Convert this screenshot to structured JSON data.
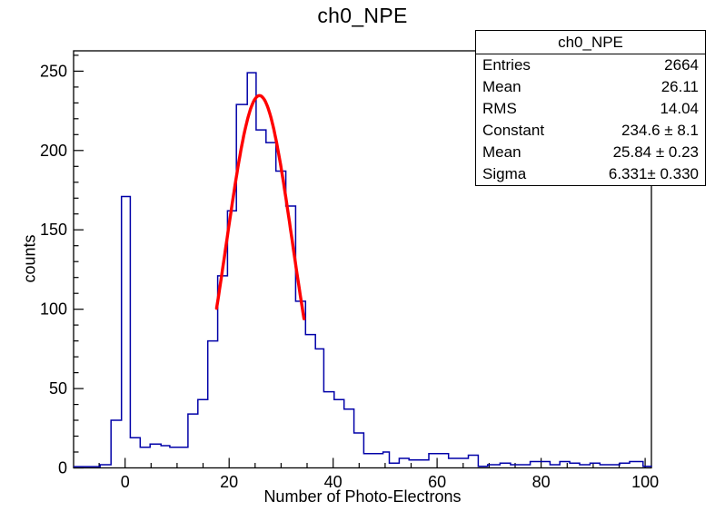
{
  "chart_data": {
    "type": "histogram",
    "title": "ch0_NPE",
    "xlabel": "Number of Photo-Electrons",
    "ylabel": "counts",
    "xlim": [
      -9.9,
      101.2
    ],
    "ylim": [
      0,
      262.8
    ],
    "xticks": [
      0,
      20,
      40,
      60,
      80,
      100
    ],
    "yticks": [
      0,
      50,
      100,
      150,
      200,
      250
    ],
    "x_minor_step": 5,
    "y_minor_step": 10,
    "grid": false,
    "hist_color": "#0000a8",
    "fit_color": "#ff0000",
    "bins_note": "each entry is [bin_left_edge_x, count]; steps continue to next edge; histogram ends at x_end",
    "bins": [
      [
        -4.8,
        2
      ],
      [
        -2.7,
        30
      ],
      [
        -0.7,
        171
      ],
      [
        1.0,
        19
      ],
      [
        2.9,
        13
      ],
      [
        4.8,
        15
      ],
      [
        6.9,
        14
      ],
      [
        8.6,
        13
      ],
      [
        10.4,
        13
      ],
      [
        12.1,
        34
      ],
      [
        14.0,
        43
      ],
      [
        15.9,
        80
      ],
      [
        17.8,
        121
      ],
      [
        19.7,
        162
      ],
      [
        21.4,
        229
      ],
      [
        23.5,
        249
      ],
      [
        25.2,
        213
      ],
      [
        27.1,
        205
      ],
      [
        29.0,
        187
      ],
      [
        30.9,
        165
      ],
      [
        32.8,
        105
      ],
      [
        34.7,
        84
      ],
      [
        36.6,
        75
      ],
      [
        38.2,
        48
      ],
      [
        40.2,
        43
      ],
      [
        42.1,
        37
      ],
      [
        44.0,
        22
      ],
      [
        45.9,
        9
      ],
      [
        47.7,
        9
      ],
      [
        49.6,
        10
      ],
      [
        50.8,
        3
      ],
      [
        52.7,
        6
      ],
      [
        54.6,
        5
      ],
      [
        56.5,
        5
      ],
      [
        58.4,
        9
      ],
      [
        60.2,
        9
      ],
      [
        62.2,
        6
      ],
      [
        64.0,
        6
      ],
      [
        66.0,
        8
      ],
      [
        67.9,
        1
      ],
      [
        69.7,
        2
      ],
      [
        72.1,
        3
      ],
      [
        74.1,
        2
      ],
      [
        76.0,
        2
      ],
      [
        77.9,
        4
      ],
      [
        81.7,
        2
      ],
      [
        83.6,
        4
      ],
      [
        85.5,
        3
      ],
      [
        87.4,
        2
      ],
      [
        89.4,
        3
      ],
      [
        91.3,
        2
      ],
      [
        93.2,
        2
      ],
      [
        95.1,
        3
      ],
      [
        97.0,
        4
      ],
      [
        99.6,
        1
      ]
    ],
    "x_end": 101.2,
    "fit": {
      "model": "gaussian",
      "constant": 234.6,
      "mean": 25.84,
      "sigma": 6.331,
      "range": [
        17.6,
        34.4
      ]
    }
  },
  "stats_box": {
    "title": "ch0_NPE",
    "rows": [
      {
        "label": "Entries",
        "value": "2664"
      },
      {
        "label": "Mean",
        "value": "26.11"
      },
      {
        "label": "RMS",
        "value": "14.04"
      },
      {
        "label": "Constant",
        "value": "234.6 ± 8.1"
      },
      {
        "label": "Mean",
        "value": "25.84 ± 0.23"
      },
      {
        "label": "Sigma",
        "value": "6.331± 0.330"
      }
    ]
  }
}
